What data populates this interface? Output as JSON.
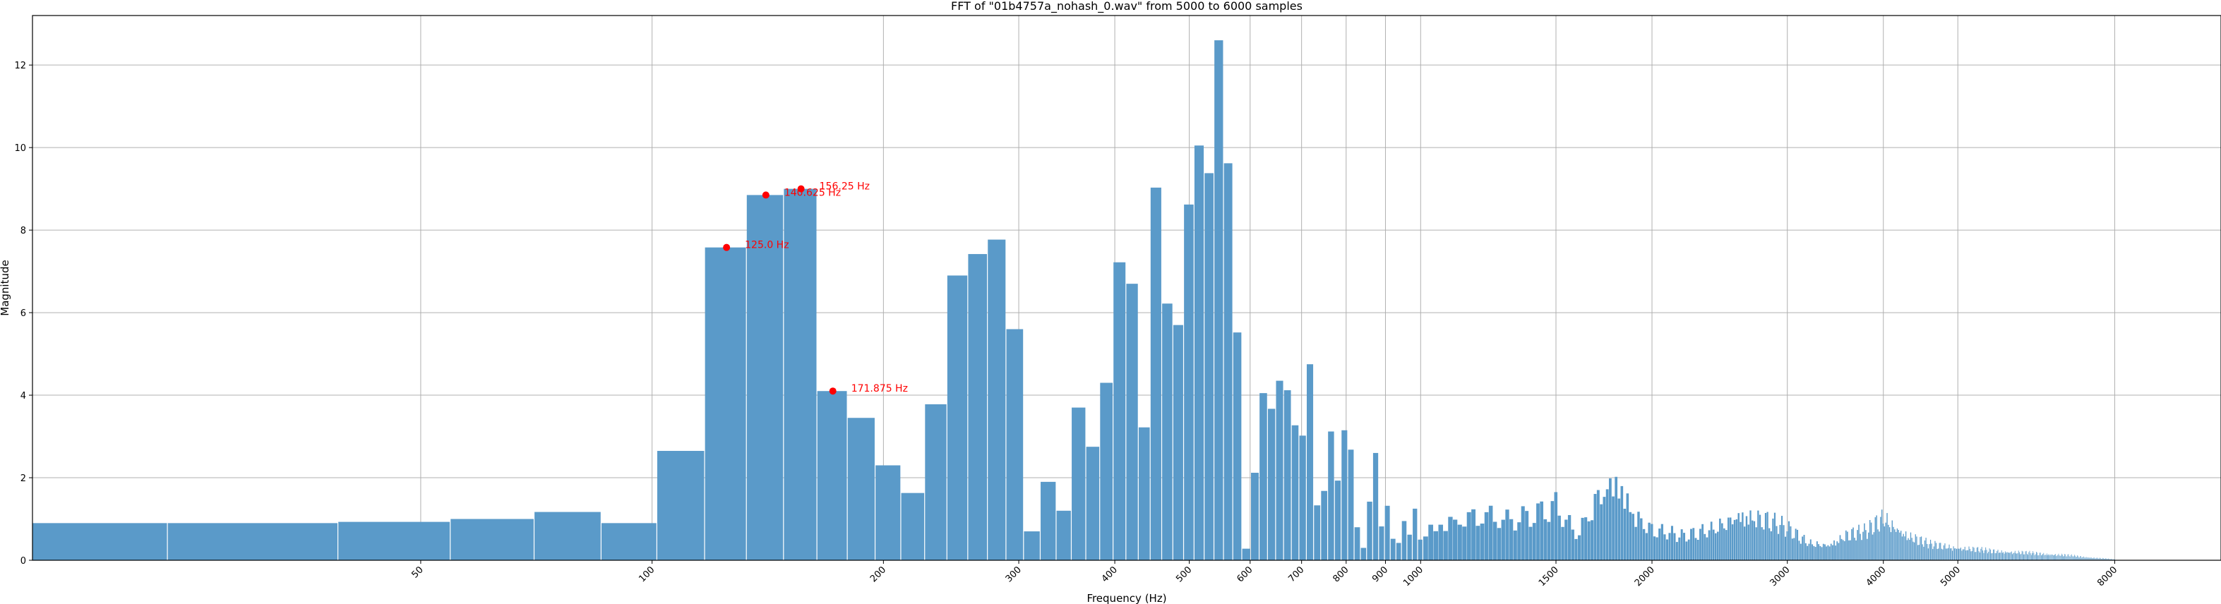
{
  "chart_data": {
    "type": "bar",
    "title": "FFT of \"01b4757a_nohash_0.wav\" from 5000 to 6000 samples",
    "xlabel": "Frequency (Hz)",
    "ylabel": "Magnitude",
    "xscale": "log",
    "bin_width_hz": 15.625,
    "xlim": [
      15.625,
      11000
    ],
    "ylim": [
      0,
      13.2
    ],
    "grid": true,
    "bar_color": "#5a9ac9",
    "marker_color": "#ff0000",
    "xticks": [
      50,
      100,
      200,
      300,
      400,
      500,
      600,
      700,
      800,
      900,
      1000,
      1500,
      2000,
      3000,
      4000,
      5000,
      8000
    ],
    "yticks": [
      0,
      2,
      4,
      6,
      8,
      10,
      12
    ],
    "series": [
      {
        "x": [
          15.625,
          31.25,
          46.875,
          62.5,
          78.125,
          93.75,
          109.375,
          125.0,
          140.625,
          156.25,
          171.875,
          187.5,
          203.125,
          218.75,
          234.375,
          250.0,
          265.625,
          281.25,
          296.875,
          312.5,
          328.125,
          343.75,
          359.375,
          375.0,
          390.625,
          406.25,
          421.875,
          437.5,
          453.125,
          468.75,
          484.375,
          500.0,
          515.625,
          531.25,
          546.875,
          562.5,
          578.125,
          593.75,
          609.375,
          625.0,
          640.625,
          656.25,
          671.875,
          687.5,
          703.125,
          718.75,
          734.375,
          750.0,
          765.625,
          781.25,
          796.875,
          812.5,
          828.125,
          843.75,
          859.375,
          875.0,
          890.625,
          906.25,
          921.875,
          937.5,
          953.125,
          968.75,
          984.375,
          1000.0
        ],
        "values": [
          0.9,
          0.9,
          0.93,
          1.0,
          1.17,
          0.9,
          2.65,
          7.58,
          8.85,
          9.0,
          4.1,
          3.45,
          2.3,
          1.63,
          3.78,
          6.9,
          7.42,
          7.77,
          5.6,
          0.7,
          1.9,
          1.2,
          3.7,
          2.75,
          4.3,
          7.22,
          6.7,
          3.22,
          9.03,
          6.22,
          5.7,
          8.62,
          10.05,
          9.38,
          12.6,
          9.62,
          5.52,
          0.28,
          2.12,
          4.05,
          3.67,
          4.35,
          4.12,
          3.27,
          3.02,
          4.75,
          1.33,
          1.68,
          3.12,
          1.93,
          3.15,
          2.68,
          0.8,
          0.3,
          1.42,
          2.6,
          0.82,
          1.32,
          0.52,
          0.42,
          0.95,
          0.62,
          1.25,
          0.5
        ]
      }
    ],
    "high_freq_envelope": {
      "x": [
        1000,
        1100,
        1200,
        1300,
        1400,
        1500,
        1600,
        1700,
        1800,
        1900,
        2000,
        2200,
        2400,
        2600,
        2800,
        3000,
        3200,
        3400,
        3600,
        3800,
        4000,
        4300,
        4600,
        5000,
        5500,
        6000,
        6500,
        7000,
        7500,
        8000
      ],
      "values": [
        1.0,
        1.3,
        1.5,
        1.25,
        1.4,
        1.7,
        0.8,
        2.1,
        2.7,
        1.5,
        1.0,
        0.75,
        1.0,
        1.5,
        1.35,
        1.0,
        0.55,
        0.5,
        0.85,
        0.9,
        1.35,
        0.8,
        0.5,
        0.4,
        0.3,
        0.25,
        0.2,
        0.15,
        0.08,
        0.03
      ]
    },
    "peaks": [
      {
        "freq": 125.0,
        "value": 7.58,
        "label": "125.0 Hz"
      },
      {
        "freq": 140.625,
        "value": 8.85,
        "label": "140.625 Hz"
      },
      {
        "freq": 156.25,
        "value": 9.0,
        "label": "156.25 Hz"
      },
      {
        "freq": 171.875,
        "value": 4.1,
        "label": "171.875 Hz"
      }
    ]
  }
}
